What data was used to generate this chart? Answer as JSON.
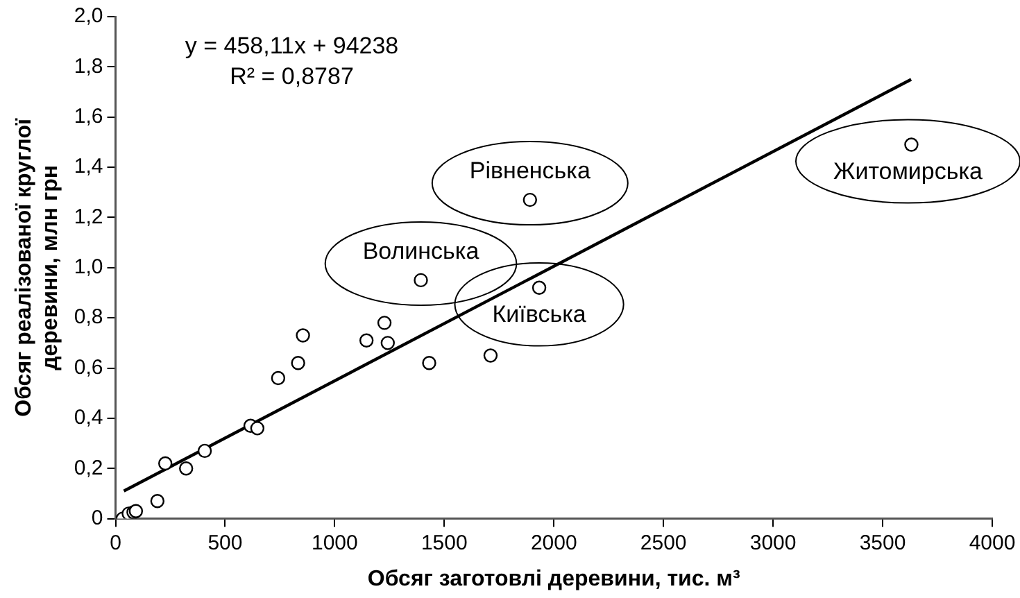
{
  "chart_data": {
    "type": "scatter",
    "xlabel": "Обсяг заготовлі деревини, тис. м³",
    "ylabel": "Обсяг реалізованої круглої деревини, млн грн",
    "xlim": [
      0,
      4000
    ],
    "xticks": [
      0,
      500,
      1000,
      1500,
      2000,
      2500,
      3000,
      3500,
      4000
    ],
    "ylim": [
      0,
      2
    ],
    "yticks": [
      0,
      {
        "value": 0.2,
        "label": "0,2"
      },
      {
        "value": 0.4,
        "label": "0,4"
      },
      {
        "value": 0.6,
        "label": "0,6"
      },
      {
        "value": 0.8,
        "label": "0,8"
      },
      {
        "value": 1,
        "label": "1,0"
      },
      {
        "value": 1.2,
        "label": "1,2"
      },
      {
        "value": 1.4,
        "label": "1,4"
      },
      {
        "value": 1.6,
        "label": "1,6"
      },
      {
        "value": 1.8,
        "label": "1,8"
      },
      {
        "value": 2,
        "label": "2,0"
      }
    ],
    "grid": false,
    "legend": false,
    "series": [
      {
        "color": "#000000",
        "marker": "circle",
        "x": [
          33,
          60,
          82,
          93,
          191,
          227,
          322,
          407,
          616,
          647,
          742,
          833,
          855,
          1145,
          1227,
          1242,
          1431,
          1711,
          1393,
          1891,
          1933,
          3631
        ],
        "values": [
          0.0,
          0.02,
          0.025,
          0.03,
          0.07,
          0.22,
          0.2,
          0.27,
          0.37,
          0.36,
          0.56,
          0.62,
          0.73,
          0.71,
          0.78,
          0.7,
          0.62,
          0.65,
          0.95,
          1.27,
          0.92,
          1.49
        ]
      },
      {
        "type": "line",
        "color": "#000000",
        "marker": "none",
        "x": [
          38,
          3630
        ],
        "values": [
          0.11,
          1.75
        ]
      }
    ],
    "annotations": [
      "y = 458,11x + 94238",
      "R² = 0,8787",
      {
        "text": "Рівненська",
        "x": 1891,
        "y": 1.27
      },
      {
        "text": "Волинська",
        "x": 1393,
        "y": 0.95
      },
      {
        "text": "Київська",
        "x": 1933,
        "y": 0.92
      },
      {
        "text": "Житомирська",
        "x": 3631,
        "y": 1.49
      }
    ]
  }
}
